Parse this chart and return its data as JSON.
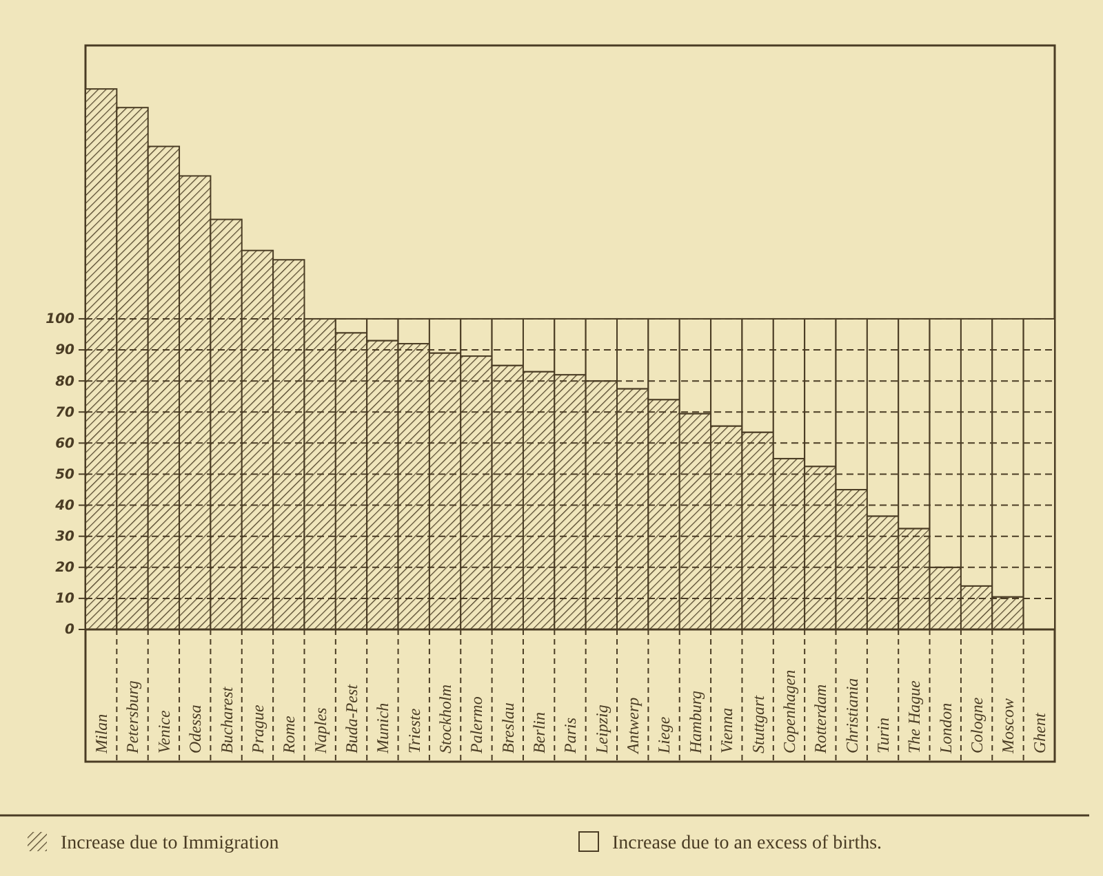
{
  "chart_data": {
    "type": "bar",
    "stacked": true,
    "categories": [
      "Milan",
      "Petersburg",
      "Venice",
      "Odessa",
      "Bucharest",
      "Prague",
      "Rome",
      "Naples",
      "Buda-Pest",
      "Munich",
      "Trieste",
      "Stockholm",
      "Palermo",
      "Breslau",
      "Berlin",
      "Paris",
      "Leipzig",
      "Antwerp",
      "Liege",
      "Hamburg",
      "Vienna",
      "Stuttgart",
      "Copenhagen",
      "Rotterdam",
      "Christiania",
      "Turin",
      "The Hague",
      "London",
      "Cologne",
      "Moscow",
      "Ghent"
    ],
    "series": [
      {
        "name": "Increase due to Immigration",
        "color": "#4a3c24",
        "values": [
          174,
          168,
          155.5,
          146,
          132,
          122,
          119,
          100,
          95.5,
          93,
          92,
          89,
          88,
          85,
          83,
          82,
          80,
          77.5,
          74,
          69.5,
          65.5,
          63.5,
          55,
          52.5,
          45,
          36.5,
          32.5,
          20,
          14,
          10.5,
          0
        ]
      },
      {
        "name": "Increase due to an excess of births.",
        "color": "#f0e6bc",
        "values": [
          null,
          null,
          null,
          null,
          null,
          null,
          null,
          0,
          4.5,
          7,
          8,
          11,
          12,
          15,
          17,
          18,
          20,
          22.5,
          26,
          30.5,
          34.5,
          36.5,
          45,
          47.5,
          55,
          63.5,
          67.5,
          80,
          86,
          89.5,
          100
        ]
      }
    ],
    "ylim": [
      0,
      188
    ],
    "yticks": [
      0,
      10,
      20,
      30,
      40,
      50,
      60,
      70,
      80,
      90,
      100
    ],
    "grid": "y",
    "legend": "bottom"
  }
}
